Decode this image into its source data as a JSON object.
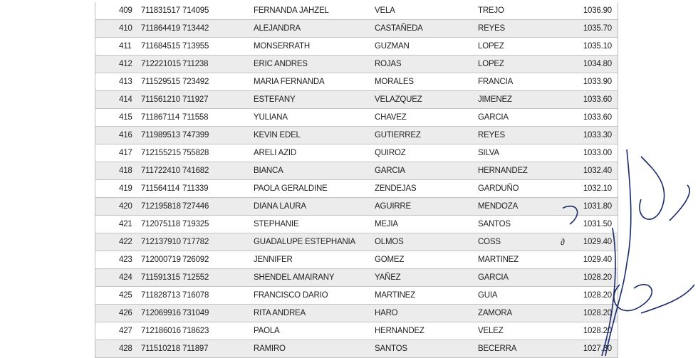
{
  "rows": [
    [
      "409",
      "711831517",
      "714095",
      "FERNANDA JAHZEL",
      "VELA",
      "TREJO",
      "1036.90"
    ],
    [
      "410",
      "711864419",
      "713442",
      "ALEJANDRA",
      "CASTAÑEDA",
      "REYES",
      "1035.70"
    ],
    [
      "411",
      "711684515",
      "713955",
      "MONSERRATH",
      "GUZMAN",
      "LOPEZ",
      "1035.10"
    ],
    [
      "412",
      "712221015",
      "711238",
      "ERIC ANDRES",
      "ROJAS",
      "LOPEZ",
      "1034.80"
    ],
    [
      "413",
      "711529515",
      "723492",
      "MARIA FERNANDA",
      "MORALES",
      "FRANCIA",
      "1033.90"
    ],
    [
      "414",
      "711561210",
      "711927",
      "ESTEFANY",
      "VELAZQUEZ",
      "JIMENEZ",
      "1033.60"
    ],
    [
      "415",
      "711867114",
      "711558",
      "YULIANA",
      "CHAVEZ",
      "GARCIA",
      "1033.60"
    ],
    [
      "416",
      "711989513",
      "747399",
      "KEVIN EDEL",
      "GUTIERREZ",
      "REYES",
      "1033.30"
    ],
    [
      "417",
      "712155215",
      "755828",
      "ARELI AZID",
      "QUIROZ",
      "SILVA",
      "1033.00"
    ],
    [
      "418",
      "711722410",
      "741682",
      "BIANCA",
      "GARCIA",
      "HERNANDEZ",
      "1032.40"
    ],
    [
      "419",
      "711564114",
      "711339",
      "PAOLA GERALDINE",
      "ZENDEJAS",
      "GARDUÑO",
      "1032.10"
    ],
    [
      "420",
      "712195818",
      "727446",
      "DIANA LAURA",
      "AGUIRRE",
      "MENDOZA",
      "1031.80"
    ],
    [
      "421",
      "712075118",
      "719325",
      "STEPHANIE",
      "MEJIA",
      "SANTOS",
      "1031.50"
    ],
    [
      "422",
      "712137910",
      "717782",
      "GUADALUPE ESTEPHANIA",
      "OLMOS",
      "COSS",
      "1029.40"
    ],
    [
      "423",
      "712000719",
      "726092",
      "JENNIFER",
      "GOMEZ",
      "MARTINEZ",
      "1029.40"
    ],
    [
      "424",
      "711591315",
      "712552",
      "SHENDEL AMAIRANY",
      "YAÑEZ",
      "GARCIA",
      "1028.20"
    ],
    [
      "425",
      "711828713",
      "716078",
      "FRANCISCO DARIO",
      "MARTINEZ",
      "GUIA",
      "1028.20"
    ],
    [
      "426",
      "712069916",
      "731049",
      "RITA ANDREA",
      "HARO",
      "ZAMORA",
      "1028.20"
    ],
    [
      "427",
      "712186016",
      "718623",
      "PAOLA",
      "HERNANDEZ",
      "VELEZ",
      "1028.20"
    ],
    [
      "428",
      "711510218",
      "711897",
      "RAMIRO",
      "SANTOS",
      "BECERRA",
      "1027.30"
    ]
  ],
  "ink_color": "#1a2a6c"
}
